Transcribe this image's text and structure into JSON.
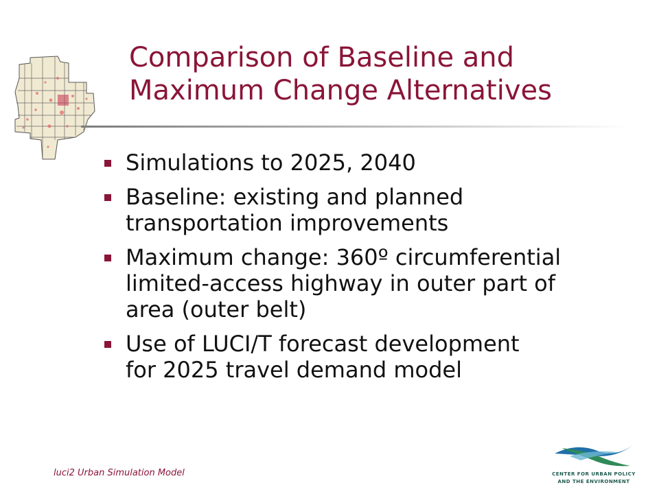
{
  "slide": {
    "title_lines": [
      "Comparison of Baseline and",
      "Maximum Change Alternatives"
    ],
    "bullets": [
      {
        "lines": [
          "Simulations to 2025, 2040"
        ]
      },
      {
        "lines": [
          "Baseline: existing and planned",
          "transportation improvements"
        ]
      },
      {
        "lines": [
          "Maximum change: 360º circumferential",
          "limited-access highway in outer part of",
          "area (outer belt)"
        ]
      },
      {
        "lines": [
          "Use of LUCI/T forecast development",
          "for 2025 travel demand model"
        ]
      }
    ],
    "footer": "luci2 Urban Simulation Model"
  },
  "logo": {
    "line1": "CENTER FOR URBAN POLICY",
    "line2": "AND THE ENVIRONMENT"
  },
  "colors": {
    "title": "#8a1538",
    "bullet_marker": "#8a1538",
    "text": "#111111",
    "logo_blue": "#1f6fa8",
    "logo_green": "#2e8b57"
  },
  "icons": {
    "map": "county-map-icon",
    "bullet": "square-bullet-icon",
    "logo": "cupe-logo"
  }
}
